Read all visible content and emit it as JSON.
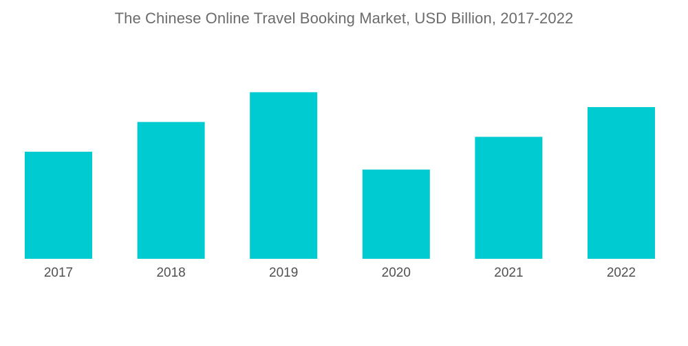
{
  "chart_data": {
    "type": "bar",
    "title": "The Chinese Online Travel Booking Market, USD Billion, 2017-2022",
    "categories": [
      "2017",
      "2018",
      "2019",
      "2020",
      "2021",
      "2022"
    ],
    "values": [
      36,
      46,
      56,
      30,
      41,
      51
    ],
    "xlabel": "",
    "ylabel": "",
    "ylim": [
      0,
      60
    ],
    "grid": false,
    "legend": "none",
    "bar_color": "#00cbd1"
  }
}
